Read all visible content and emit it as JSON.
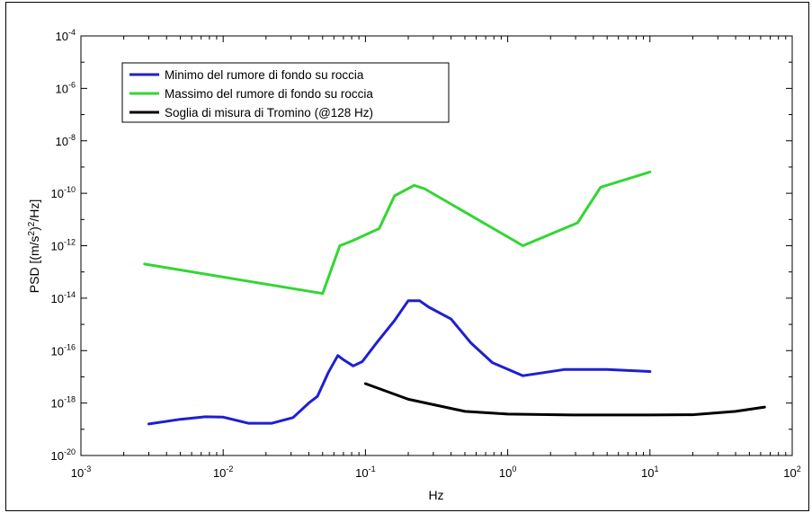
{
  "chart_data": {
    "type": "line",
    "xlabel": "Hz",
    "ylabel_parts": {
      "pre": "PSD [(m/s",
      "sup": "2",
      "mid": ")",
      "sup2": "2",
      "post": "/Hz]"
    },
    "x_scale": "log",
    "y_scale": "log",
    "xlim": [
      0.001,
      100
    ],
    "ylim": [
      1e-20,
      0.0001
    ],
    "x_ticks": [
      {
        "base": "10",
        "exp": "-3",
        "value": 0.001
      },
      {
        "base": "10",
        "exp": "-2",
        "value": 0.01
      },
      {
        "base": "10",
        "exp": "-1",
        "value": 0.1
      },
      {
        "base": "10",
        "exp": "0",
        "value": 1
      },
      {
        "base": "10",
        "exp": "1",
        "value": 10
      },
      {
        "base": "10",
        "exp": "2",
        "value": 100
      }
    ],
    "y_ticks": [
      {
        "base": "10",
        "exp": "-20",
        "value": 1e-20
      },
      {
        "base": "10",
        "exp": "-18",
        "value": 1e-18
      },
      {
        "base": "10",
        "exp": "-16",
        "value": 1e-16
      },
      {
        "base": "10",
        "exp": "-14",
        "value": 1e-14
      },
      {
        "base": "10",
        "exp": "-12",
        "value": 1e-12
      },
      {
        "base": "10",
        "exp": "-10",
        "value": 1e-10
      },
      {
        "base": "10",
        "exp": "-8",
        "value": 1e-08
      },
      {
        "base": "10",
        "exp": "-6",
        "value": 1e-06
      },
      {
        "base": "10",
        "exp": "-4",
        "value": 0.0001
      }
    ],
    "grid": false,
    "legend_position": "top-left",
    "series": [
      {
        "name": "Minimo del rumore di fondo su roccia",
        "color": "#1f1fd0",
        "points": [
          [
            0.003,
            1.6e-19
          ],
          [
            0.005,
            2.4e-19
          ],
          [
            0.0075,
            3e-19
          ],
          [
            0.01,
            2.9e-19
          ],
          [
            0.015,
            1.7e-19
          ],
          [
            0.022,
            1.7e-19
          ],
          [
            0.031,
            2.8e-19
          ],
          [
            0.04,
            1e-18
          ],
          [
            0.046,
            1.8e-18
          ],
          [
            0.055,
            1.5e-17
          ],
          [
            0.064,
            6.5e-17
          ],
          [
            0.07,
            4.5e-17
          ],
          [
            0.082,
            2.6e-17
          ],
          [
            0.095,
            3.8e-17
          ],
          [
            0.12,
            2e-16
          ],
          [
            0.16,
            1.4e-15
          ],
          [
            0.2,
            8e-15
          ],
          [
            0.24,
            8e-15
          ],
          [
            0.28,
            4.5e-15
          ],
          [
            0.4,
            1.6e-15
          ],
          [
            0.55,
            2e-16
          ],
          [
            0.78,
            3.5e-17
          ],
          [
            1.28,
            1.1e-17
          ],
          [
            2.5,
            1.9e-17
          ],
          [
            5.0,
            1.9e-17
          ],
          [
            10.0,
            1.6e-17
          ]
        ]
      },
      {
        "name": "Massimo del rumore di fondo su roccia",
        "color": "#33d633",
        "points": [
          [
            0.0028,
            2e-13
          ],
          [
            0.05,
            1.5e-14
          ],
          [
            0.066,
            1e-12
          ],
          [
            0.08,
            1.5e-12
          ],
          [
            0.125,
            4.5e-12
          ],
          [
            0.16,
            8e-11
          ],
          [
            0.22,
            2e-10
          ],
          [
            0.26,
            1.5e-10
          ],
          [
            1.28,
            1e-12
          ],
          [
            3.1,
            7.5e-12
          ],
          [
            4.5,
            1.7e-10
          ],
          [
            10.0,
            6.5e-10
          ]
        ]
      },
      {
        "name": "Soglia di misura di Tromino (@128 Hz)",
        "color": "#000000",
        "points": [
          [
            0.1,
            5.5e-18
          ],
          [
            0.2,
            1.4e-18
          ],
          [
            0.5,
            4.8e-19
          ],
          [
            1.0,
            3.8e-19
          ],
          [
            3.0,
            3.5e-19
          ],
          [
            10.0,
            3.5e-19
          ],
          [
            20.0,
            3.6e-19
          ],
          [
            40.0,
            4.8e-19
          ],
          [
            64.0,
            7e-19
          ]
        ]
      }
    ]
  }
}
